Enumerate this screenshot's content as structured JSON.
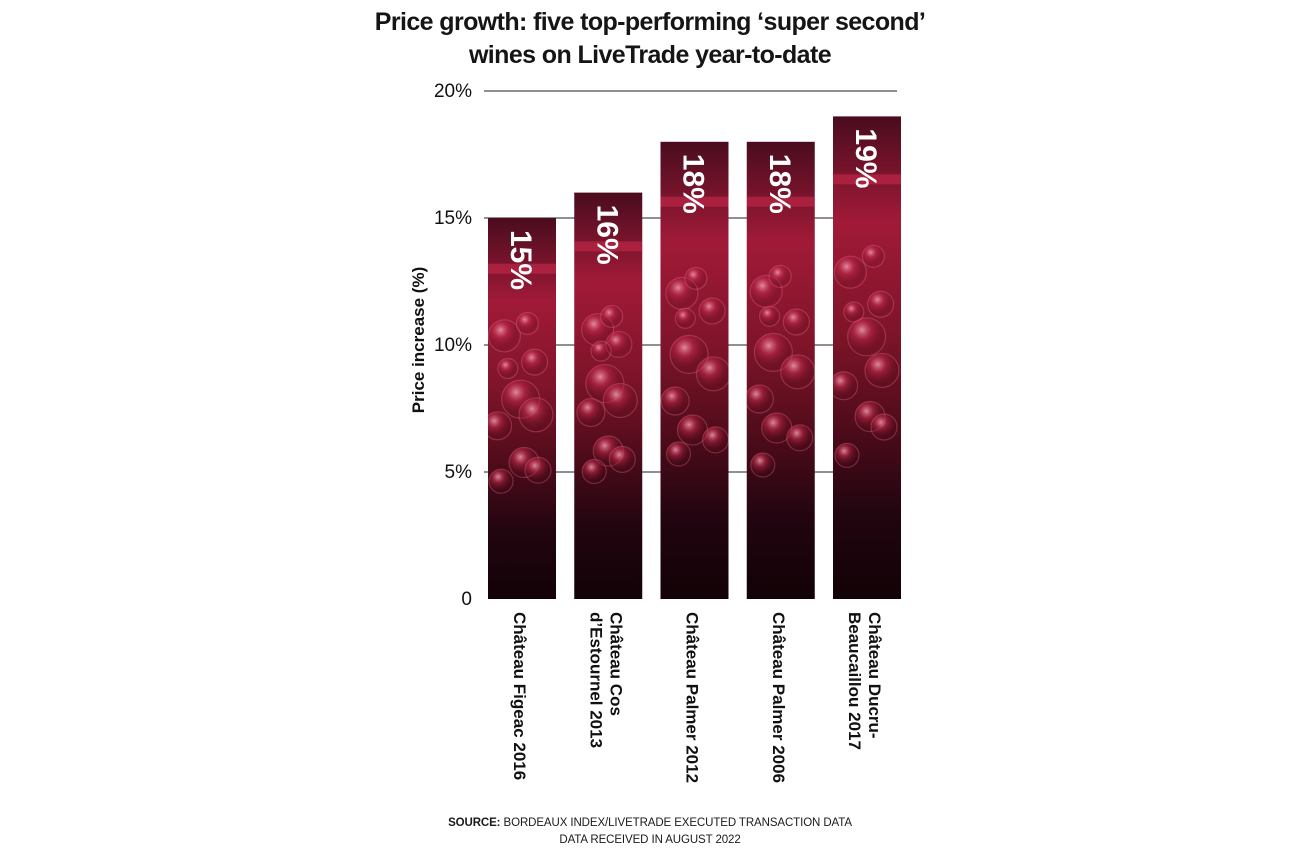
{
  "title_line1": "Price growth: five top-performing ‘super second’",
  "title_line2": "wines on LiveTrade year-to-date",
  "source_label": "SOURCE:",
  "source_line1": "BORDEAUX INDEX/LIVETRADE EXECUTED TRANSACTION DATA",
  "source_line2": "DATA RECEIVED IN AUGUST 2022",
  "colors": {
    "bar_top": "#5a0f24",
    "bar_mid": "#b4203f",
    "bar_highlight": "#e0355e",
    "bar_bottom": "#150308",
    "grid": "#222222",
    "value_label": "#ffffff"
  },
  "chart_data": {
    "type": "bar",
    "ylabel": "Price increase (%)",
    "ylim": [
      0,
      20
    ],
    "yticks": [
      0,
      5,
      10,
      15,
      20
    ],
    "ytick_labels": [
      "0",
      "5%",
      "10%",
      "15%",
      "20%"
    ],
    "grid": true,
    "categories": [
      [
        "Château Figeac 2016"
      ],
      [
        "Château Cos",
        "d’Estournel 2013"
      ],
      [
        "Château Palmer 2012"
      ],
      [
        "Château Palmer 2006"
      ],
      [
        "Château Ducru-",
        "Beaucaillou 2017"
      ]
    ],
    "values": [
      15,
      16,
      18,
      18,
      19
    ],
    "value_labels": [
      "15%",
      "16%",
      "18%",
      "18%",
      "19%"
    ]
  }
}
